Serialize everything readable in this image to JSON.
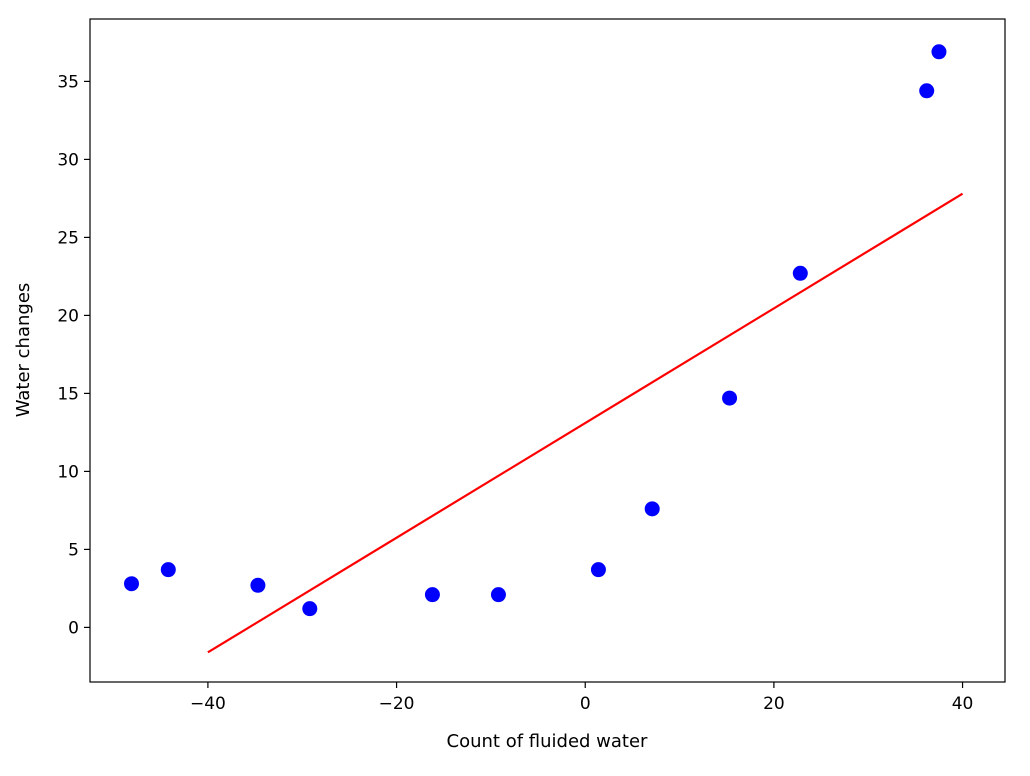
{
  "chart_data": {
    "type": "scatter",
    "title": "",
    "xlabel": "Count of fluided water",
    "ylabel": "Water changes",
    "xlim": [
      -52.5,
      44.5
    ],
    "ylim": [
      -3.5,
      39.0
    ],
    "xticks": [
      -40,
      -20,
      0,
      20,
      40
    ],
    "xtick_labels": [
      "−40",
      "−20",
      "0",
      "20",
      "40"
    ],
    "yticks": [
      0,
      5,
      10,
      15,
      20,
      25,
      30,
      35
    ],
    "ytick_labels": [
      "0",
      "5",
      "10",
      "15",
      "20",
      "25",
      "30",
      "35"
    ],
    "grid": false,
    "legend": "none",
    "series": [
      {
        "kind": "scatter",
        "color": "#0000ff",
        "x": [
          -48.1,
          -44.2,
          -34.7,
          -29.2,
          -16.2,
          -9.2,
          1.4,
          7.1,
          15.3,
          22.8,
          36.2,
          37.5
        ],
        "y": [
          2.8,
          3.7,
          2.7,
          1.2,
          2.1,
          2.1,
          3.7,
          7.6,
          14.7,
          22.7,
          34.4,
          36.9
        ]
      },
      {
        "kind": "line",
        "color": "#ff0000",
        "x": [
          -40,
          40
        ],
        "y": [
          -1.6,
          27.8
        ]
      }
    ]
  }
}
